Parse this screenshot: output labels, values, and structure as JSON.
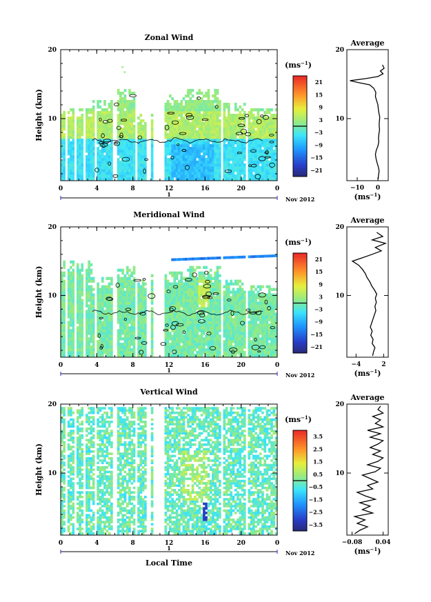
{
  "chart_data": [
    {
      "type": "heatmap",
      "id": "zonal",
      "title": "Zonal Wind",
      "ylabel": "Height (km)",
      "xlabel": "",
      "x_ticks": [
        "0",
        "4",
        "8",
        "12",
        "16",
        "20",
        "0"
      ],
      "y_ticks": [
        "20",
        "10"
      ],
      "day_label": "1",
      "month_label": "Nov 2012",
      "ylim": [
        1,
        20
      ],
      "colorbar": {
        "unit": "(ms",
        "unit_exp": "−1",
        "unit_close": ")",
        "ticks": [
          "21",
          "15",
          "9",
          "3",
          "−3",
          "−9",
          "−15",
          "−21"
        ],
        "range": [
          -24,
          24
        ]
      },
      "profile": {
        "title": "Average",
        "y_ticks": [
          "20",
          "10"
        ],
        "x_ticks": [
          "−10",
          "0"
        ],
        "xlabel": "(ms",
        "xlabel_exp": "−1",
        "xlabel_close": ")",
        "xlim": [
          -15,
          5
        ],
        "points": [
          [
            0.1,
            1.2
          ],
          [
            0.3,
            1.8
          ],
          [
            0.6,
            2.4
          ],
          [
            0.2,
            3.0
          ],
          [
            -0.4,
            3.6
          ],
          [
            -0.9,
            4.2
          ],
          [
            -1.2,
            4.8
          ],
          [
            -0.8,
            5.4
          ],
          [
            0.0,
            6.0
          ],
          [
            0.4,
            6.6
          ],
          [
            0.3,
            7.2
          ],
          [
            0.5,
            7.8
          ],
          [
            0.8,
            8.4
          ],
          [
            0.6,
            9.0
          ],
          [
            0.7,
            9.6
          ],
          [
            0.9,
            10.2
          ],
          [
            0.5,
            10.8
          ],
          [
            0.2,
            11.4
          ],
          [
            0.0,
            12.0
          ],
          [
            -0.6,
            12.6
          ],
          [
            -1.2,
            13.2
          ],
          [
            -1.0,
            13.8
          ],
          [
            -2.0,
            14.4
          ],
          [
            -4.0,
            14.9
          ],
          [
            -9.0,
            15.2
          ],
          [
            -13.5,
            15.5
          ],
          [
            -6.0,
            15.8
          ],
          [
            0.0,
            16.1
          ],
          [
            2.5,
            16.5
          ],
          [
            1.2,
            16.9
          ],
          [
            3.0,
            17.3
          ],
          [
            2.2,
            17.8
          ]
        ]
      }
    },
    {
      "type": "heatmap",
      "id": "meridional",
      "title": "Meridional Wind",
      "ylabel": "Height (km)",
      "xlabel": "",
      "x_ticks": [
        "0",
        "4",
        "8",
        "12",
        "16",
        "20",
        "0"
      ],
      "y_ticks": [
        "20",
        "10"
      ],
      "day_label": "1",
      "month_label": "Nov 2012",
      "ylim": [
        1,
        20
      ],
      "colorbar": {
        "unit": "(ms",
        "unit_exp": "−1",
        "unit_close": ")",
        "ticks": [
          "21",
          "15",
          "9",
          "3",
          "−3",
          "−9",
          "−15",
          "−21"
        ],
        "range": [
          -24,
          24
        ]
      },
      "profile": {
        "title": "Average",
        "y_ticks": [
          "20",
          "10"
        ],
        "x_ticks": [
          "−4",
          "2"
        ],
        "xlabel": "(ms",
        "xlabel_exp": "−1",
        "xlabel_close": ")",
        "xlim": [
          -6,
          3
        ],
        "points": [
          [
            -0.4,
            1.2
          ],
          [
            -0.2,
            1.8
          ],
          [
            0.1,
            2.4
          ],
          [
            -0.5,
            3.0
          ],
          [
            -0.3,
            3.6
          ],
          [
            -0.8,
            4.2
          ],
          [
            -0.5,
            4.8
          ],
          [
            -0.9,
            5.4
          ],
          [
            -0.6,
            6.0
          ],
          [
            -0.3,
            6.6
          ],
          [
            0.0,
            7.2
          ],
          [
            0.3,
            7.8
          ],
          [
            0.1,
            8.4
          ],
          [
            0.4,
            9.0
          ],
          [
            0.2,
            9.6
          ],
          [
            0.5,
            10.2
          ],
          [
            0.0,
            10.8
          ],
          [
            -0.6,
            11.4
          ],
          [
            -1.0,
            12.0
          ],
          [
            -1.6,
            12.6
          ],
          [
            -2.0,
            13.2
          ],
          [
            -2.6,
            13.8
          ],
          [
            -3.4,
            14.4
          ],
          [
            -4.8,
            15.0
          ],
          [
            -2.6,
            15.5
          ],
          [
            -0.5,
            16.0
          ],
          [
            1.5,
            16.5
          ],
          [
            0.2,
            17.0
          ],
          [
            2.4,
            17.6
          ],
          [
            -0.5,
            18.1
          ],
          [
            1.8,
            18.6
          ],
          [
            0.5,
            19.2
          ]
        ]
      }
    },
    {
      "type": "heatmap",
      "id": "vertical",
      "title": "Vertical Wind",
      "ylabel": "Height (km)",
      "xlabel": "Local Time",
      "x_ticks": [
        "0",
        "4",
        "8",
        "12",
        "16",
        "20",
        "0"
      ],
      "y_ticks": [
        "20",
        "10"
      ],
      "day_label": "1",
      "month_label": "Nov 2012",
      "ylim": [
        1,
        20
      ],
      "colorbar": {
        "unit": "(ms",
        "unit_exp": "−1",
        "unit_close": ")",
        "ticks": [
          "3.5",
          "2.5",
          "1.5",
          "0.5",
          "−0.5",
          "−1.5",
          "−2.5",
          "−3.5"
        ],
        "range": [
          -4,
          4
        ]
      },
      "profile": {
        "title": "Average",
        "y_ticks": [
          "20",
          "10"
        ],
        "x_ticks": [
          "−0.08",
          "0.04"
        ],
        "xlabel": "(ms",
        "xlabel_exp": "−1",
        "xlabel_close": ")",
        "xlim": [
          -0.1,
          0.06
        ],
        "points": [
          [
            -0.07,
            1.2
          ],
          [
            -0.05,
            1.7
          ],
          [
            -0.02,
            2.2
          ],
          [
            -0.06,
            2.7
          ],
          [
            -0.03,
            3.2
          ],
          [
            -0.07,
            3.7
          ],
          [
            0.0,
            4.2
          ],
          [
            -0.04,
            4.7
          ],
          [
            -0.01,
            5.2
          ],
          [
            -0.05,
            5.7
          ],
          [
            0.01,
            6.2
          ],
          [
            -0.03,
            6.7
          ],
          [
            -0.06,
            7.2
          ],
          [
            0.0,
            7.7
          ],
          [
            -0.02,
            8.2
          ],
          [
            0.02,
            8.7
          ],
          [
            -0.01,
            9.2
          ],
          [
            -0.04,
            9.7
          ],
          [
            0.01,
            10.2
          ],
          [
            0.03,
            10.7
          ],
          [
            -0.02,
            11.2
          ],
          [
            0.02,
            11.7
          ],
          [
            0.04,
            12.2
          ],
          [
            0.0,
            12.7
          ],
          [
            0.03,
            13.2
          ],
          [
            -0.01,
            13.7
          ],
          [
            0.02,
            14.2
          ],
          [
            0.04,
            14.7
          ],
          [
            -0.01,
            15.2
          ],
          [
            0.03,
            15.7
          ],
          [
            -0.02,
            16.2
          ],
          [
            0.04,
            16.7
          ],
          [
            0.01,
            17.2
          ],
          [
            0.03,
            17.7
          ],
          [
            0.0,
            18.2
          ],
          [
            0.04,
            18.7
          ],
          [
            0.02,
            19.2
          ],
          [
            0.03,
            19.7
          ]
        ]
      }
    }
  ]
}
